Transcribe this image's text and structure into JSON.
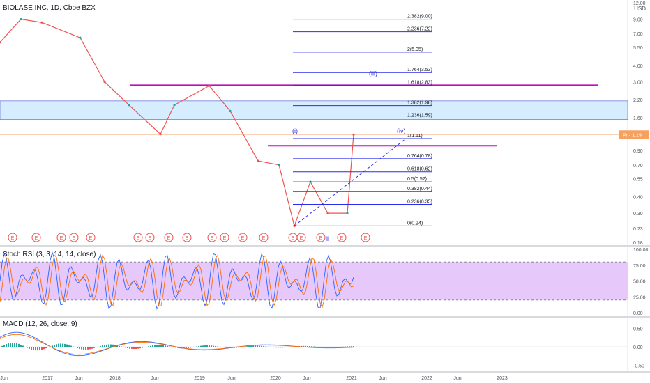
{
  "header": {
    "title": "BIOLASE INC, 1D, Cboe BZX",
    "currency": "USD"
  },
  "colors": {
    "candle_up": "#26a69a",
    "candle_down": "#ef5350",
    "fib": "#2a2eec",
    "magenta": "#c20ac2",
    "band_fill": "#d6ecff",
    "price_tag": "#f7a15f",
    "rsi_fill": "#e6c8fb",
    "k_line": "#2962ff",
    "d_line": "#ff6d00",
    "earnings": "#ef5350",
    "current_price_line": "#f5c2a0"
  },
  "price_axis": {
    "ticks": [
      "12.00",
      "9.00",
      "7.00",
      "5.50",
      "4.00",
      "3.00",
      "2.20",
      "1.60",
      "1.20",
      "0.90",
      "0.70",
      "0.55",
      "0.40",
      "0.30",
      "0.23",
      "0.18"
    ],
    "current_price": "Pr - 1.19",
    "scale": "log"
  },
  "fib_levels": [
    {
      "label": "2.382(9.00)",
      "value": 9.0
    },
    {
      "label": "2.236(7.22)",
      "value": 7.22
    },
    {
      "label": "2(5.05)",
      "value": 5.05
    },
    {
      "label": "1.764(3.53)",
      "value": 3.53
    },
    {
      "label": "1.618(2.83)",
      "value": 2.83
    },
    {
      "label": "1.382(1.98)",
      "value": 1.98
    },
    {
      "label": "1.236(1.59)",
      "value": 1.59
    },
    {
      "label": "1(1.11)",
      "value": 1.11
    },
    {
      "label": "0.764(0.78)",
      "value": 0.78
    },
    {
      "label": "0.618(0.62)",
      "value": 0.62
    },
    {
      "label": "0.5(0.52)",
      "value": 0.52
    },
    {
      "label": "0.382(0.44)",
      "value": 0.44
    },
    {
      "label": "0.236(0.35)",
      "value": 0.35
    },
    {
      "label": "0(0.24)",
      "value": 0.24
    }
  ],
  "wave_labels": [
    "(i)",
    "(iv)",
    "(iii)",
    "ii"
  ],
  "earnings_marker": "E",
  "time_axis": [
    "Jun",
    "2017",
    "Jun",
    "2018",
    "Jun",
    "2019",
    "Jun",
    "2020",
    "Jun",
    "2021",
    "Jun",
    "2022",
    "Jun",
    "2023"
  ],
  "stoch": {
    "label": "Stoch RSI (3, 3, 14, 14, close)",
    "ticks": [
      "100.00",
      "75.00",
      "50.00",
      "25.00",
      "0.00"
    ]
  },
  "macd": {
    "label": "MACD (12, 26, close, 9)",
    "ticks": [
      "0.50",
      "0.00",
      "-0.50"
    ]
  },
  "chart_data": {
    "type": "line",
    "title": "BIOLASE INC, 1D, Cboe BZX",
    "y_scale": "log",
    "ylim": [
      0.18,
      12.0
    ],
    "x": [
      "2016-06",
      "2016-10",
      "2017-01",
      "2017-06",
      "2017-10",
      "2018-01",
      "2018-06",
      "2018-10",
      "2019-01",
      "2019-06",
      "2019-10",
      "2020-01",
      "2020-03",
      "2020-06",
      "2020-09",
      "2020-12",
      "2021-01"
    ],
    "series": [
      {
        "values": [
          6.0,
          9.0,
          8.5,
          6.5,
          3.0,
          2.0,
          1.2,
          2.0,
          2.8,
          1.8,
          0.75,
          0.7,
          0.24,
          0.52,
          0.3,
          0.3,
          1.19
        ]
      }
    ],
    "current_price": 1.19,
    "horizontal_lines": [
      {
        "value": 2.83
      },
      {
        "value": 0.98
      }
    ],
    "band": [
      1.55,
      2.15
    ]
  }
}
